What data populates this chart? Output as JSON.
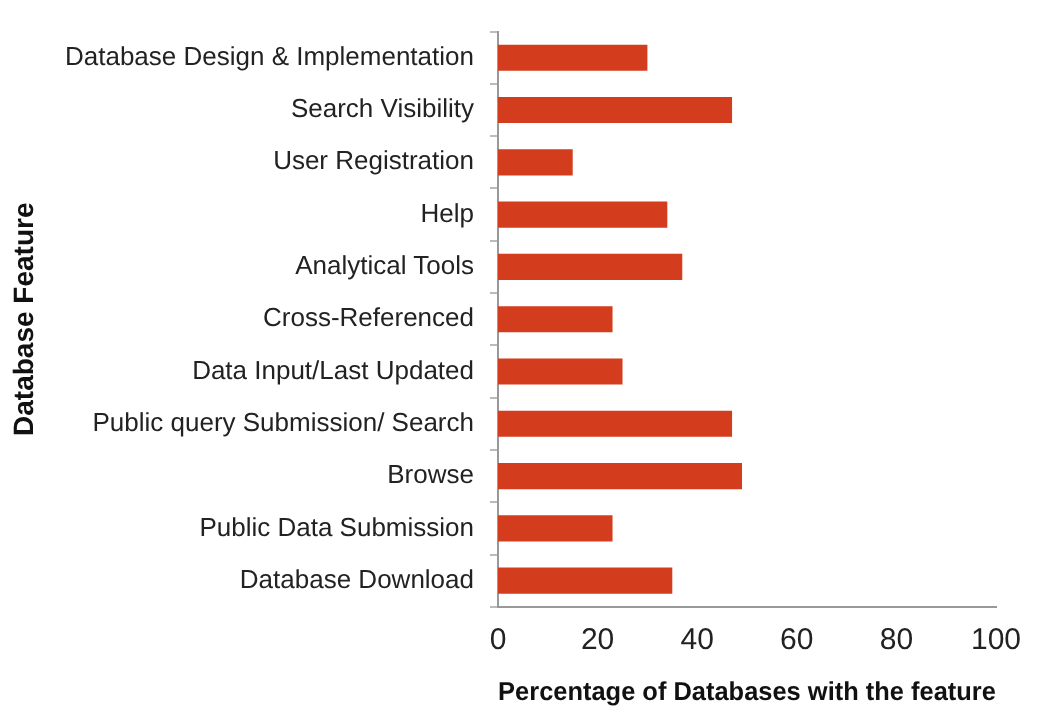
{
  "chart_data": {
    "type": "bar",
    "orientation": "horizontal",
    "categories": [
      "Database Design & Implementation",
      "Search Visibility",
      "User Registration",
      "Help",
      "Analytical Tools",
      "Cross-Referenced",
      "Data Input/Last Updated",
      "Public query Submission/ Search",
      "Browse",
      "Public Data Submission",
      "Database Download"
    ],
    "values": [
      30,
      47,
      15,
      34,
      37,
      23,
      25,
      47,
      49,
      23,
      35
    ],
    "color": "#d33c1c",
    "xlim": [
      0,
      100
    ],
    "xticks": [
      0,
      20,
      40,
      60,
      80,
      100
    ],
    "xlabel": "Percentage of Databases with the feature",
    "ylabel": "Database Feature",
    "grid": false,
    "legend": false
  }
}
